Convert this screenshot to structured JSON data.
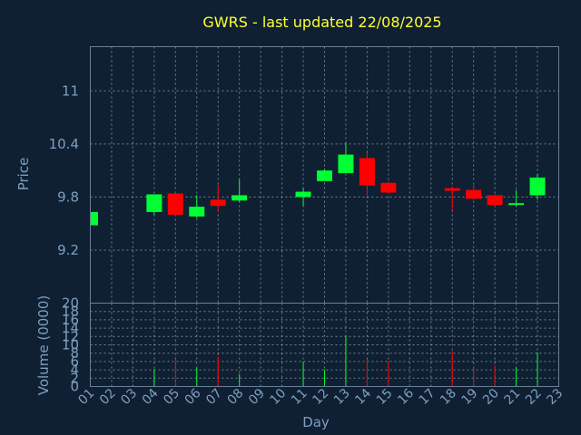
{
  "title": "GWRS - last updated 22/08/2025",
  "colors": {
    "background": "#0f2033",
    "text": "#7f9fbf",
    "title": "#ffff33",
    "up": "#00ff33",
    "down": "#ff0000"
  },
  "chart_data": [
    {
      "type": "candlestick",
      "ylabel": "Price",
      "ylim": [
        8.6,
        11.5
      ],
      "yticks": [
        9.2,
        9.8,
        10.4,
        11
      ],
      "ytick_labels": [
        "9.2",
        "9.8",
        "10.4",
        "11"
      ],
      "grid": true,
      "categories": [
        "01",
        "02",
        "03",
        "04",
        "05",
        "06",
        "07",
        "08",
        "09",
        "10",
        "11",
        "12",
        "13",
        "14",
        "15",
        "16",
        "17",
        "18",
        "19",
        "20",
        "21",
        "22",
        "23"
      ],
      "candles": [
        {
          "x": "01",
          "open": 9.48,
          "high": 9.63,
          "low": 9.45,
          "close": 9.63
        },
        {
          "x": "04",
          "open": 9.63,
          "high": 9.83,
          "low": 9.6,
          "close": 9.83
        },
        {
          "x": "05",
          "open": 9.84,
          "high": 9.86,
          "low": 9.58,
          "close": 9.6
        },
        {
          "x": "06",
          "open": 9.58,
          "high": 9.82,
          "low": 9.56,
          "close": 9.69
        },
        {
          "x": "07",
          "open": 9.77,
          "high": 9.94,
          "low": 9.64,
          "close": 9.7
        },
        {
          "x": "08",
          "open": 9.76,
          "high": 10.0,
          "low": 9.74,
          "close": 9.82
        },
        {
          "x": "11",
          "open": 9.8,
          "high": 9.9,
          "low": 9.7,
          "close": 9.86
        },
        {
          "x": "12",
          "open": 9.98,
          "high": 10.12,
          "low": 9.98,
          "close": 10.1
        },
        {
          "x": "13",
          "open": 10.07,
          "high": 10.42,
          "low": 10.07,
          "close": 10.28
        },
        {
          "x": "14",
          "open": 10.24,
          "high": 10.3,
          "low": 9.82,
          "close": 9.93
        },
        {
          "x": "15",
          "open": 9.96,
          "high": 9.98,
          "low": 9.84,
          "close": 9.85
        },
        {
          "x": "18",
          "open": 9.9,
          "high": 9.92,
          "low": 9.65,
          "close": 9.87
        },
        {
          "x": "19",
          "open": 9.88,
          "high": 9.96,
          "low": 9.77,
          "close": 9.78
        },
        {
          "x": "20",
          "open": 9.82,
          "high": 9.83,
          "low": 9.68,
          "close": 9.71
        },
        {
          "x": "21",
          "open": 9.71,
          "high": 9.88,
          "low": 9.7,
          "close": 9.73
        },
        {
          "x": "22",
          "open": 9.82,
          "high": 10.06,
          "low": 9.77,
          "close": 10.02
        }
      ]
    },
    {
      "type": "bar",
      "ylabel": "Volume (0000)",
      "xlabel": "Day",
      "ylim": [
        0,
        20
      ],
      "yticks": [
        0,
        2,
        4,
        6,
        8,
        10,
        12,
        14,
        16,
        18,
        20
      ],
      "ytick_labels": [
        "0",
        "2",
        "4",
        "6",
        "8",
        "10",
        "12",
        "14",
        "16",
        "18",
        "20"
      ],
      "xticks": [
        "01",
        "02",
        "03",
        "04",
        "05",
        "06",
        "07",
        "08",
        "09",
        "10",
        "11",
        "12",
        "13",
        "14",
        "15",
        "16",
        "17",
        "18",
        "19",
        "20",
        "21",
        "22",
        "23"
      ],
      "grid": true,
      "bars": [
        {
          "x": "04",
          "value": 4.2,
          "direction": "up"
        },
        {
          "x": "05",
          "value": 6.5,
          "direction": "down"
        },
        {
          "x": "06",
          "value": 4.5,
          "direction": "up"
        },
        {
          "x": "07",
          "value": 7.2,
          "direction": "down"
        },
        {
          "x": "08",
          "value": 3.0,
          "direction": "up"
        },
        {
          "x": "11",
          "value": 6.0,
          "direction": "up"
        },
        {
          "x": "12",
          "value": 4.0,
          "direction": "up"
        },
        {
          "x": "13",
          "value": 12.0,
          "direction": "up"
        },
        {
          "x": "14",
          "value": 6.5,
          "direction": "down"
        },
        {
          "x": "15",
          "value": 6.2,
          "direction": "down"
        },
        {
          "x": "18",
          "value": 8.5,
          "direction": "down"
        },
        {
          "x": "19",
          "value": 4.8,
          "direction": "down"
        },
        {
          "x": "20",
          "value": 5.0,
          "direction": "down"
        },
        {
          "x": "21",
          "value": 4.5,
          "direction": "up"
        },
        {
          "x": "22",
          "value": 8.2,
          "direction": "up"
        }
      ]
    }
  ]
}
